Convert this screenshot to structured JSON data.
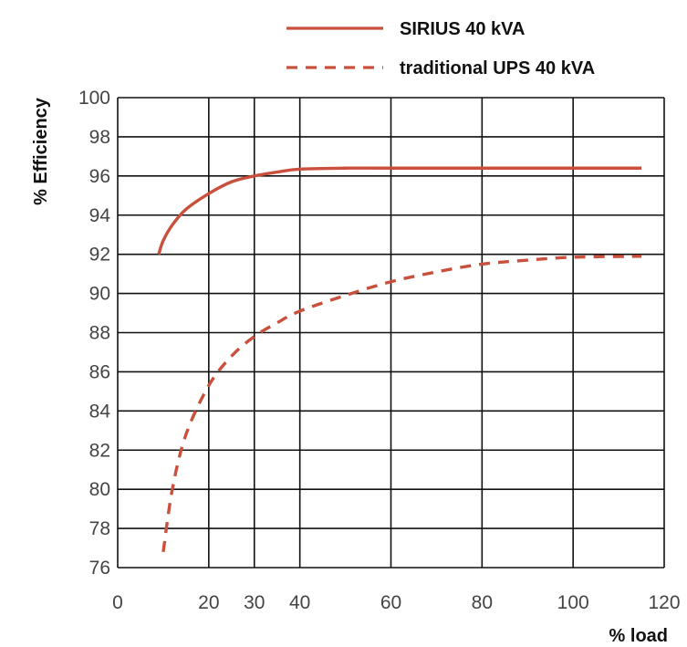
{
  "chart_data": {
    "type": "line",
    "xlabel": "% load",
    "ylabel": "% Efficiency",
    "xlim": [
      0,
      120
    ],
    "ylim": [
      76,
      100
    ],
    "x_ticks": [
      0,
      20,
      30,
      40,
      60,
      80,
      100,
      120
    ],
    "x_tick_labels": [
      "0",
      "20",
      "30",
      "40",
      "60",
      "80",
      "100",
      "120"
    ],
    "y_ticks": [
      76,
      78,
      80,
      82,
      84,
      86,
      88,
      90,
      92,
      94,
      96,
      98,
      100
    ],
    "y_tick_labels": [
      "76",
      "78",
      "80",
      "82",
      "84",
      "86",
      "88",
      "90",
      "92",
      "94",
      "96",
      "98",
      "100"
    ],
    "grid": true,
    "legend_position": "top-right",
    "series": [
      {
        "name": "SIRIUS 40 kVA",
        "style": "solid",
        "color": "#c9503c",
        "points": [
          [
            9,
            92.0
          ],
          [
            10,
            92.7
          ],
          [
            12,
            93.5
          ],
          [
            15,
            94.3
          ],
          [
            20,
            95.1
          ],
          [
            25,
            95.7
          ],
          [
            30,
            96.0
          ],
          [
            35,
            96.2
          ],
          [
            40,
            96.35
          ],
          [
            50,
            96.4
          ],
          [
            60,
            96.4
          ],
          [
            80,
            96.4
          ],
          [
            100,
            96.4
          ],
          [
            115,
            96.4
          ]
        ]
      },
      {
        "name": "traditional UPS 40 kVA",
        "style": "dashed",
        "color": "#c9503c",
        "points": [
          [
            10,
            76.8
          ],
          [
            12,
            80.0
          ],
          [
            15,
            82.8
          ],
          [
            20,
            85.3
          ],
          [
            25,
            86.8
          ],
          [
            30,
            87.8
          ],
          [
            35,
            88.5
          ],
          [
            40,
            89.1
          ],
          [
            50,
            89.9
          ],
          [
            60,
            90.6
          ],
          [
            70,
            91.1
          ],
          [
            80,
            91.5
          ],
          [
            90,
            91.7
          ],
          [
            100,
            91.85
          ],
          [
            115,
            91.9
          ]
        ]
      }
    ]
  }
}
